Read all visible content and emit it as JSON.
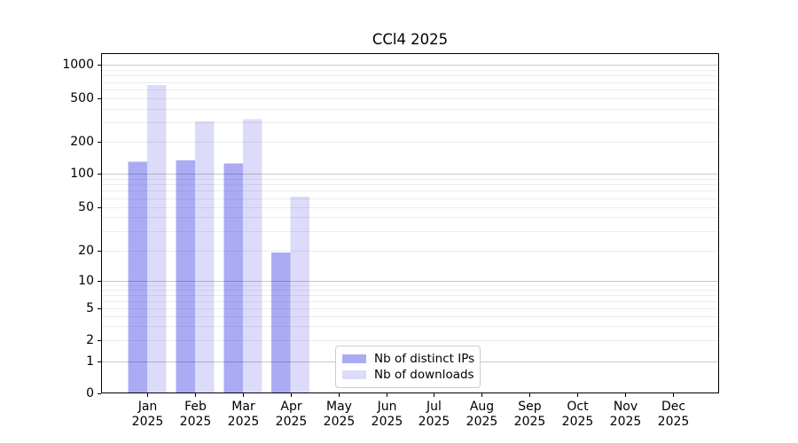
{
  "chart_data": {
    "type": "bar",
    "title": "CCl4 2025",
    "scale": "symlog",
    "categories": [
      "Jan 2025",
      "Feb 2025",
      "Mar 2025",
      "Apr 2025",
      "May 2025",
      "Jun 2025",
      "Jul 2025",
      "Aug 2025",
      "Sep 2025",
      "Oct 2025",
      "Nov 2025",
      "Dec 2025"
    ],
    "series": [
      {
        "name": "Nb of distinct IPs",
        "color": "rgba(2,2,219,0.333)",
        "values": [
          130,
          133,
          125,
          19,
          0,
          0,
          0,
          0,
          0,
          0,
          0,
          0
        ]
      },
      {
        "name": "Nb of downloads",
        "color": "rgba(2,2,219,0.138)",
        "values": [
          660,
          307,
          322,
          62,
          0,
          0,
          0,
          0,
          0,
          0,
          0,
          0
        ]
      }
    ],
    "yticks": [
      0,
      1,
      2,
      5,
      10,
      20,
      50,
      100,
      200,
      500,
      1000
    ],
    "ylim": [
      0,
      1280
    ],
    "xlabel": "",
    "ylabel": "",
    "grid": "horizontal log gridlines: light minors (2-9 per decade), darker majors at 1,10,100,1000",
    "legend_position": "inside lower-center-left"
  },
  "colors": {
    "background": "#ffffff",
    "axis": "#000000",
    "major_grid": "#c8c8c8",
    "minor_grid": "#ededed",
    "legend_border": "#cccccc",
    "bar_distinct_ips": "rgba(2,2,219,0.333)",
    "bar_downloads": "rgba(2,2,219,0.138)"
  }
}
